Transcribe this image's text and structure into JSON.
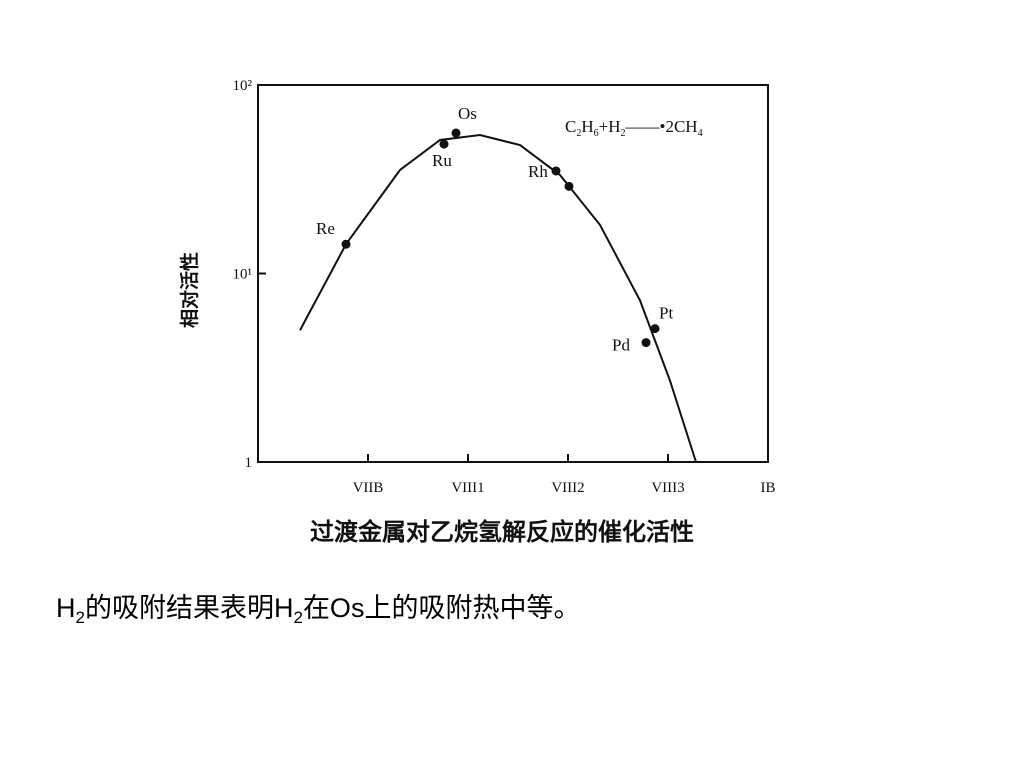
{
  "chart_data": {
    "type": "scatter",
    "annotation": [
      "C",
      "2",
      "H",
      "6",
      "+H",
      "2",
      "——•2CH",
      "4"
    ],
    "ylabel": "相对活性",
    "xlabel": "过渡金属对乙烷氢解反应的催化活性",
    "log_y": true,
    "xlim": [
      -0.1,
      5
    ],
    "ylim": [
      1,
      100
    ],
    "xticks": [
      {
        "value": 1,
        "label": "VIIB"
      },
      {
        "value": 2,
        "label": "VIII1"
      },
      {
        "value": 3,
        "label": "VIII2"
      },
      {
        "value": 4,
        "label": "VIII3"
      },
      {
        "value": 5,
        "label": "IB"
      }
    ],
    "yticks": [
      1,
      {
        "value": 10,
        "label": "10¹"
      },
      {
        "value": 100,
        "label": "10²"
      }
    ],
    "color": "#111111",
    "points": {
      "x": [
        0.78,
        1.76,
        1.88,
        2.88,
        3.01,
        3.78,
        3.87
      ],
      "values": [
        14.3,
        48.6,
        55.6,
        35,
        29,
        4.3,
        5.1
      ],
      "labels": [
        "Re",
        "Ru",
        "Os",
        "Rh",
        null,
        "Pd",
        "Pt"
      ]
    },
    "curve": {
      "x": [
        0.32,
        0.78,
        1.32,
        1.72,
        2.12,
        2.52,
        2.92,
        3.32,
        3.72,
        4.02,
        4.28
      ],
      "values": [
        5.0,
        14.3,
        35.4,
        51.1,
        54.3,
        48.0,
        33.3,
        18.1,
        7.2,
        2.7,
        1.0
      ]
    }
  },
  "caption": [
    "H",
    "2",
    "的吸附结果表明H",
    "2",
    "在Os上的吸附热中等。"
  ]
}
